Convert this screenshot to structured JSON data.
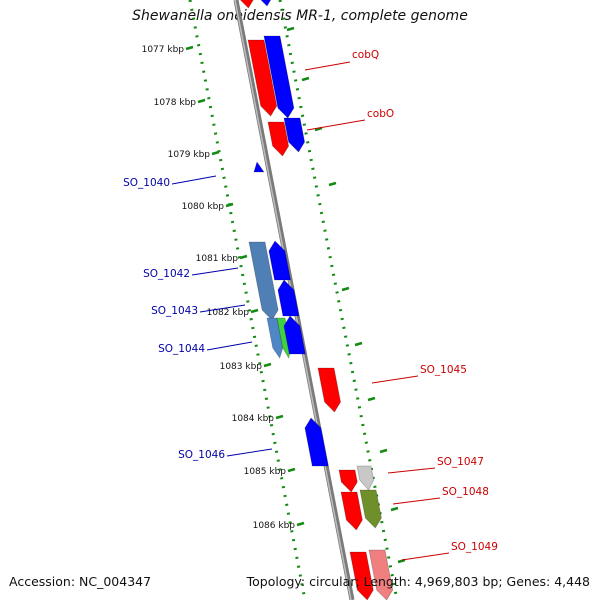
{
  "title": "Shewanella oneidensis MR-1, complete genome",
  "footer": {
    "accession": "Accession: NC_004347",
    "summary": "Topology: circular; Length: 4,969,803 bp; Genes: 4,448"
  },
  "ticks": [
    "1077 kbp",
    "1078 kbp",
    "1079 kbp",
    "1080 kbp",
    "1081 kbp",
    "1082 kbp",
    "1083 kbp",
    "1084 kbp",
    "1085 kbp",
    "1086 kbp"
  ],
  "gene_labels": [
    {
      "text": "cobQ",
      "color": "#cc0000"
    },
    {
      "text": "cobO",
      "color": "#cc0000"
    },
    {
      "text": "SO_1040",
      "color": "#0000aa"
    },
    {
      "text": "SO_1042",
      "color": "#0000aa"
    },
    {
      "text": "SO_1043",
      "color": "#0000aa"
    },
    {
      "text": "SO_1044",
      "color": "#0000aa"
    },
    {
      "text": "SO_1045",
      "color": "#cc0000"
    },
    {
      "text": "SO_1046",
      "color": "#0000aa"
    },
    {
      "text": "SO_1047",
      "color": "#cc0000"
    },
    {
      "text": "SO_1048",
      "color": "#cc0000"
    },
    {
      "text": "SO_1049",
      "color": "#cc0000"
    }
  ],
  "colors": {
    "forward_strand": "#ff0000",
    "reverse_strand": "#0000ff",
    "backbone": "#8c8c8c",
    "ticks": "#138a13"
  }
}
